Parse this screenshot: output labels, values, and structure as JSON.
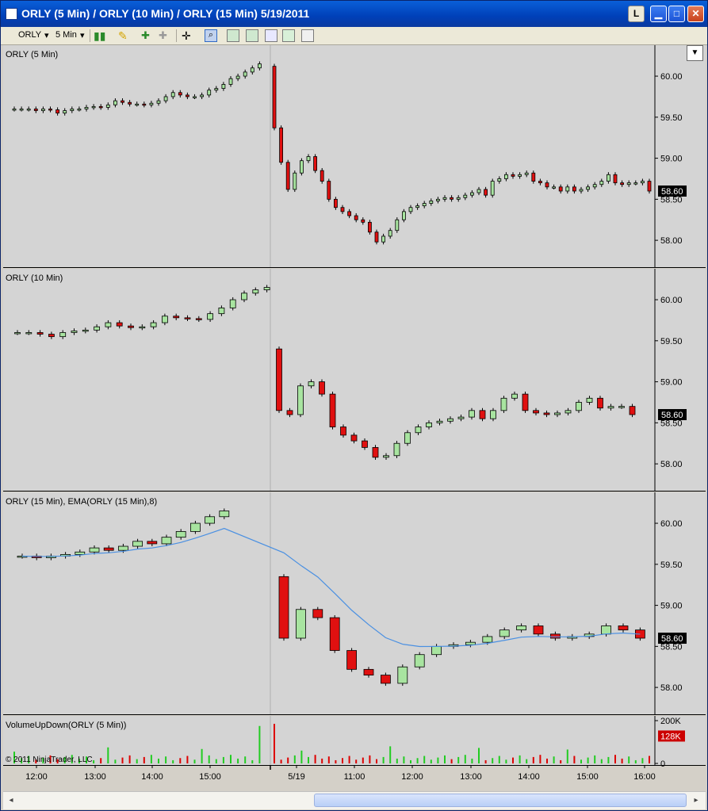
{
  "window": {
    "title": "ORLY (5 Min) / ORLY (10 Min) / ORLY (15 Min)  5/19/2011",
    "btn_l": "L",
    "btn_min": "▁",
    "btn_max": "□",
    "btn_close": "✕"
  },
  "toolbar": {
    "instrument": "ORLY",
    "period": "5 Min"
  },
  "colors": {
    "up_fill": "#a8e4a0",
    "down_fill": "#e01010",
    "ema": "#4a90e2",
    "vol_up": "#22cc22",
    "vol_down": "#dd0000",
    "label_bg": "#000000",
    "vol_label_bg": "#cc0000"
  },
  "panels": [
    {
      "title": "ORLY (5 Min)",
      "last_price": "58.60",
      "ticks": [
        "60.00",
        "59.50",
        "59.00",
        "58.50",
        "58.00"
      ]
    },
    {
      "title": "ORLY (10 Min)",
      "last_price": "58.60",
      "ticks": [
        "60.00",
        "59.50",
        "59.00",
        "58.50",
        "58.00"
      ]
    },
    {
      "title": "ORLY (15 Min), EMA(ORLY (15 Min),8)",
      "last_price": "58.60",
      "ticks": [
        "60.00",
        "59.50",
        "59.00",
        "58.50",
        "58.00"
      ]
    },
    {
      "title": "VolumeUpDown(ORLY (5 Min))",
      "last_value": "128K",
      "ticks": [
        "200K",
        "0"
      ]
    }
  ],
  "copyright": "© 2011 NinjaTrader, LLC",
  "x_axis_labels": [
    "12:00",
    "13:00",
    "14:00",
    "15:00",
    "5/19",
    "11:00",
    "12:00",
    "13:00",
    "14:00",
    "15:00",
    "16:00"
  ],
  "chart_data": [
    {
      "type": "candlestick",
      "title": "ORLY (5 Min)",
      "ylim": [
        57.75,
        60.3
      ],
      "day1_closes": [
        59.6,
        59.6,
        59.6,
        59.58,
        59.6,
        59.59,
        59.55,
        59.58,
        59.6,
        59.6,
        59.62,
        59.63,
        59.62,
        59.65,
        59.7,
        59.68,
        59.66,
        59.66,
        59.65,
        59.67,
        59.7,
        59.75,
        59.8,
        59.77,
        59.75,
        59.75,
        59.77,
        59.83,
        59.85,
        59.9,
        59.97,
        60.0,
        60.05,
        60.1,
        60.15
      ],
      "day2_closes": [
        59.37,
        58.95,
        58.62,
        58.82,
        58.97,
        59.02,
        58.85,
        58.72,
        58.5,
        58.4,
        58.35,
        58.3,
        58.25,
        58.22,
        58.1,
        57.98,
        58.05,
        58.12,
        58.25,
        58.35,
        58.4,
        58.42,
        58.45,
        58.48,
        58.5,
        58.52,
        58.5,
        58.52,
        58.55,
        58.58,
        58.62,
        58.55,
        58.72,
        58.75,
        58.8,
        58.78,
        58.8,
        58.82,
        58.72,
        58.7,
        58.65,
        58.65,
        58.6,
        58.65,
        58.6,
        58.62,
        58.65,
        58.68,
        58.72,
        58.8,
        58.7,
        58.68,
        58.7,
        58.7,
        58.72,
        58.6
      ]
    },
    {
      "type": "candlestick",
      "title": "ORLY (10 Min)",
      "ylim": [
        57.75,
        60.3
      ],
      "day1_closes": [
        59.6,
        59.6,
        59.58,
        59.55,
        59.6,
        59.62,
        59.63,
        59.67,
        59.72,
        59.68,
        59.66,
        59.67,
        59.72,
        59.8,
        59.78,
        59.77,
        59.76,
        59.83,
        59.9,
        60.0,
        60.08,
        60.12,
        60.15
      ],
      "day2_closes": [
        58.65,
        58.6,
        58.95,
        59.0,
        58.85,
        58.45,
        58.35,
        58.28,
        58.2,
        58.08,
        58.1,
        58.25,
        58.38,
        58.45,
        58.5,
        58.52,
        58.55,
        58.57,
        58.65,
        58.55,
        58.65,
        58.8,
        58.85,
        58.65,
        58.62,
        58.6,
        58.62,
        58.65,
        58.75,
        58.8,
        58.68,
        58.7,
        58.7,
        58.6
      ]
    },
    {
      "type": "candlestick",
      "title": "ORLY (15 Min), EMA(ORLY (15 Min),8)",
      "ylim": [
        57.75,
        60.3
      ],
      "day1_closes": [
        59.6,
        59.58,
        59.6,
        59.62,
        59.65,
        59.7,
        59.67,
        59.72,
        59.78,
        59.75,
        59.83,
        59.9,
        60.0,
        60.08,
        60.15
      ],
      "day2_closes": [
        58.6,
        58.95,
        58.85,
        58.45,
        58.22,
        58.15,
        58.05,
        58.25,
        58.4,
        58.5,
        58.52,
        58.55,
        58.62,
        58.7,
        58.75,
        58.65,
        58.6,
        58.62,
        58.65,
        58.75,
        58.7,
        58.6
      ],
      "ema_period": 8
    },
    {
      "type": "bar",
      "title": "VolumeUpDown(ORLY (5 Min))",
      "ylim": [
        0,
        200000
      ],
      "last_value_k": 128
    }
  ]
}
